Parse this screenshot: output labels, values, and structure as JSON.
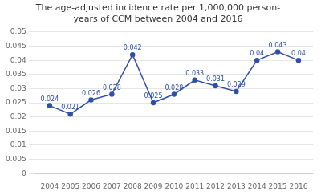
{
  "chart_data": {
    "type": "line",
    "title": "The age-adjusted incidence rate per 1,000,000 person-\nyears of CCM between 2004 and 2016",
    "x": [
      2004,
      2005,
      2006,
      2007,
      2008,
      2009,
      2010,
      2011,
      2012,
      2013,
      2014,
      2015,
      2016
    ],
    "values": [
      0.024,
      0.021,
      0.026,
      0.028,
      0.042,
      0.025,
      0.028,
      0.033,
      0.031,
      0.029,
      0.04,
      0.043,
      0.04
    ],
    "color": "#2E4FAB",
    "marker": "circle",
    "xlim": [
      2003.3,
      2016.7
    ],
    "xticks": [
      2004,
      2005,
      2006,
      2007,
      2008,
      2009,
      2010,
      2011,
      2012,
      2013,
      2014,
      2015,
      2016
    ],
    "ylim": [
      0,
      0.051
    ],
    "yticks": [
      0,
      0.005,
      0.01,
      0.015,
      0.02,
      0.025,
      0.03,
      0.035,
      0.04,
      0.045,
      0.05
    ],
    "grid": "y",
    "data_labels": true
  }
}
